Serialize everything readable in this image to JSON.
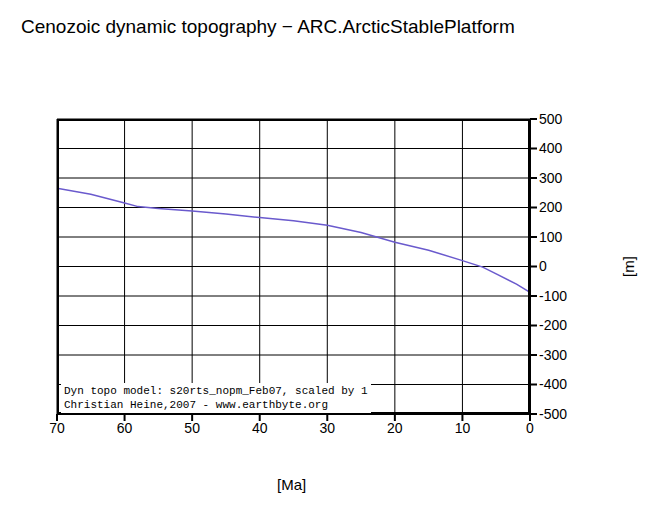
{
  "chart_data": {
    "type": "line",
    "title": "Cenozoic dynamic topography − ARC.ArcticStablePlatform",
    "x_label": "[Ma]",
    "y_label": "[m]",
    "annotations": [
      "Dyn topo model: s20rts_nopm_Feb07, scaled by 1",
      "Christian Heine,2007 - www.earthbyte.org"
    ],
    "x": [
      70,
      65,
      60,
      58,
      55,
      50,
      45,
      40,
      35,
      30,
      25,
      20,
      15,
      10,
      7,
      5,
      2,
      0
    ],
    "series": [
      {
        "name": "ARC.ArcticStablePlatform",
        "color": "#6a5acd",
        "values": [
          265,
          245,
          215,
          203,
          197,
          188,
          178,
          166,
          155,
          140,
          115,
          82,
          55,
          20,
          -2,
          -25,
          -60,
          -88
        ]
      }
    ],
    "xlim": [
      70,
      0
    ],
    "xticks": [
      70,
      60,
      50,
      40,
      30,
      20,
      10,
      0
    ],
    "ylim": [
      -500,
      500
    ],
    "yticks": [
      -500,
      -400,
      -300,
      -200,
      -100,
      0,
      100,
      200,
      300,
      400,
      500
    ],
    "grid": true
  }
}
